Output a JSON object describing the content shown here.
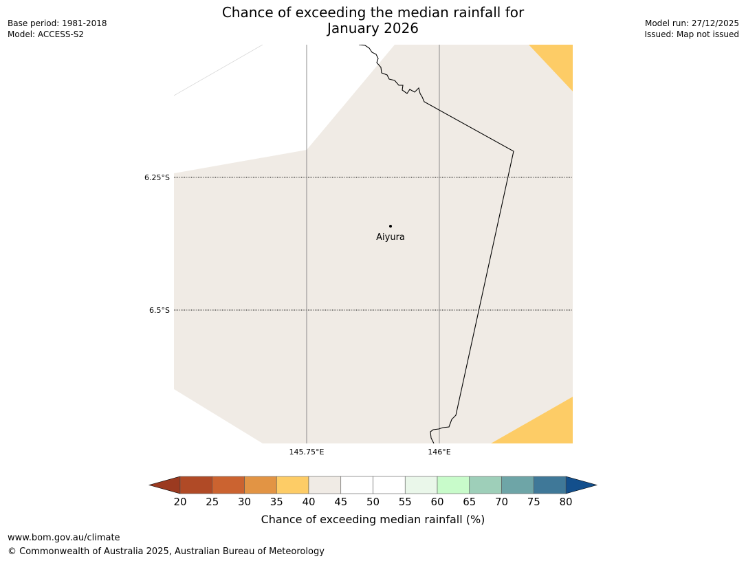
{
  "header": {
    "title_line1": "Chance of exceeding the median rainfall for",
    "title_line2": "January 2026",
    "base_period": "Base period: 1981-2018",
    "model": "Model: ACCESS-S2",
    "model_run": "Model run: 27/12/2025",
    "issued": "Issued: Map not issued"
  },
  "map": {
    "lat_labels": [
      "6.25°S",
      "6.5°S"
    ],
    "lon_labels": [
      "145.75°E",
      "146°E"
    ],
    "place": {
      "name": "Aiyura"
    },
    "colors": {
      "land_40_45": "#f0ebe5",
      "band_35_40": "#fdcc66",
      "coast": "#000000",
      "grid": "#808080"
    }
  },
  "colorbar": {
    "title": "Chance of exceeding median rainfall (%)",
    "ticks": [
      "20",
      "25",
      "30",
      "35",
      "40",
      "45",
      "50",
      "55",
      "60",
      "65",
      "70",
      "75",
      "80"
    ],
    "under_color": "#9b3a20",
    "over_color": "#134f8c",
    "colors": [
      "#b04a26",
      "#cb6330",
      "#e29444",
      "#fdcc66",
      "#f0ebe5",
      "#ffffff",
      "#ffffff",
      "#eaf7ea",
      "#c8fbca",
      "#9ecfb9",
      "#6ea5a7",
      "#3f7898"
    ]
  },
  "footer": {
    "url": "www.bom.gov.au/climate",
    "copyright": "© Commonwealth of Australia 2025, Australian Bureau of Meteorology"
  }
}
